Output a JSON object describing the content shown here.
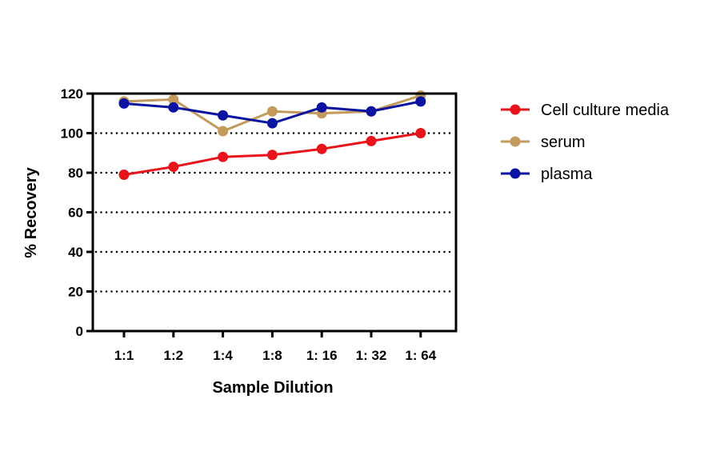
{
  "chart_data": {
    "type": "line",
    "title": "",
    "xlabel": "Sample Dilution",
    "ylabel": "% Recovery",
    "categories": [
      "1:1",
      "1:2",
      "1:4",
      "1:8",
      "1: 16",
      "1: 32",
      "1: 64"
    ],
    "ylim": [
      0,
      120
    ],
    "yticks": [
      0,
      20,
      40,
      60,
      80,
      100,
      120
    ],
    "grid": "horizontal dotted",
    "legend_position": "right",
    "series": [
      {
        "name": "Cell culture media",
        "color": "#e8141b",
        "values": [
          79,
          83,
          88,
          89,
          92,
          96,
          100
        ]
      },
      {
        "name": "serum",
        "color": "#c39a5c",
        "values": [
          116,
          117,
          101,
          111,
          110,
          111,
          119
        ]
      },
      {
        "name": "plasma",
        "color": "#0a14a0",
        "values": [
          115,
          113,
          109,
          105,
          113,
          111,
          116
        ]
      }
    ]
  }
}
